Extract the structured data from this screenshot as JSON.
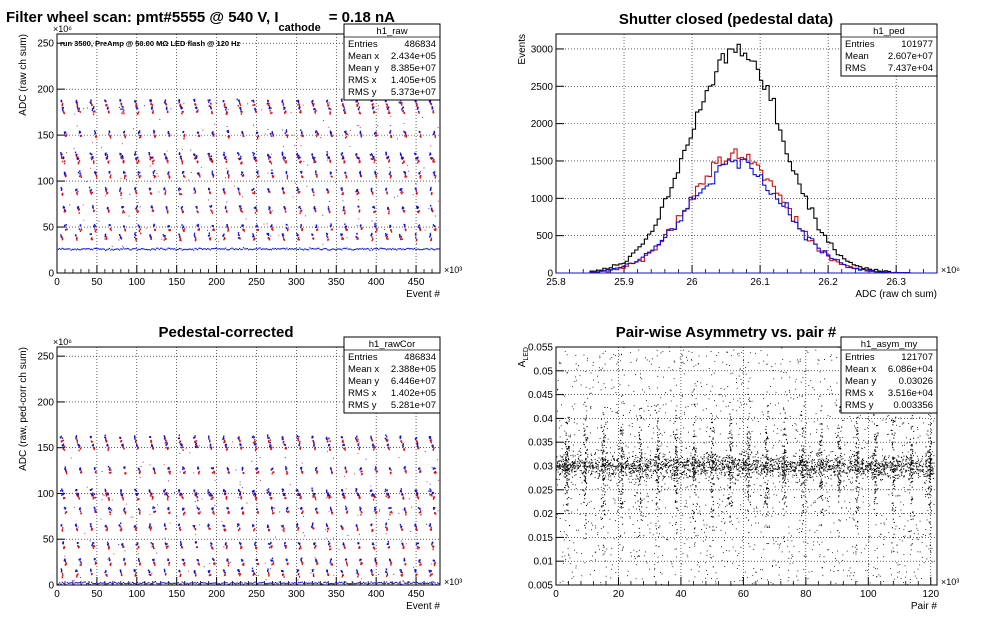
{
  "colors": {
    "red": "#d01010",
    "blue": "#1010d0",
    "black": "#000000"
  },
  "chart_data": [
    {
      "id": "raw",
      "type": "scatter",
      "title": "Filter wheel scan: pmt#5555 @   540 V, I",
      "title_sub": "cathode",
      "title_tail": "= 0.18 nA",
      "annotation": "run 3500, PreAmp @ 50.00 MΩ LED flash @  120 Hz",
      "xlabel": "Event #",
      "ylabel": "ADC (raw ch sum)",
      "x_exponent": "×10³",
      "y_exponent": "×10⁶",
      "xlim": [
        0,
        480
      ],
      "ylim": [
        0,
        260
      ],
      "xticks": [
        0,
        50,
        100,
        150,
        200,
        250,
        300,
        350,
        400,
        450
      ],
      "yticks": [
        0,
        50,
        100,
        150,
        200,
        250
      ],
      "grid": true,
      "baseline": 26,
      "levels": [
        186,
        178,
        152,
        128,
        124,
        108,
        90,
        70,
        50,
        40
      ],
      "stats": {
        "name": "h1_raw",
        "rows": [
          [
            "Entries",
            "486834"
          ],
          [
            "Mean x",
            "2.434e+05"
          ],
          [
            "Mean y",
            "8.385e+07"
          ],
          [
            "RMS x",
            "1.405e+05"
          ],
          [
            "RMS y",
            "5.373e+07"
          ]
        ]
      }
    },
    {
      "id": "ped",
      "type": "line",
      "title": "Shutter closed (pedestal data)",
      "xlabel": "ADC (raw ch sum)",
      "ylabel": "Events",
      "x_exponent": "×10⁶",
      "xlim": [
        25.8,
        26.36
      ],
      "ylim": [
        0,
        3200
      ],
      "xticks": [
        25.8,
        25.9,
        26,
        26.1,
        26.2,
        26.3
      ],
      "xtick_labels": [
        "25.8",
        "25.9",
        "26",
        "26.1",
        "26.2",
        "26.3"
      ],
      "yticks": [
        0,
        500,
        1000,
        1500,
        2000,
        2500,
        3000
      ],
      "grid": true,
      "series": [
        {
          "color": "black",
          "mean": 26.065,
          "sigma": 0.068,
          "peak": 3020
        },
        {
          "color": "red",
          "mean": 26.065,
          "sigma": 0.068,
          "peak": 1580
        },
        {
          "color": "blue",
          "mean": 26.065,
          "sigma": 0.07,
          "peak": 1470
        }
      ],
      "stats": {
        "name": "h1_ped",
        "rows": [
          [
            "Entries",
            "101977"
          ],
          [
            "Mean",
            "2.607e+07"
          ],
          [
            "RMS",
            "7.437e+04"
          ]
        ]
      }
    },
    {
      "id": "rawCor",
      "type": "scatter",
      "title": "Pedestal-corrected",
      "xlabel": "Event #",
      "ylabel": "ADC (raw, ped-corr ch sum)",
      "x_exponent": "×10³",
      "y_exponent": "×10⁶",
      "xlim": [
        0,
        480
      ],
      "ylim": [
        0,
        260
      ],
      "xticks": [
        0,
        50,
        100,
        150,
        200,
        250,
        300,
        350,
        400,
        450
      ],
      "yticks": [
        0,
        50,
        100,
        150,
        200,
        250
      ],
      "grid": true,
      "baseline": 2,
      "levels": [
        160,
        152,
        126,
        102,
        98,
        82,
        64,
        44,
        26,
        14
      ],
      "stats": {
        "name": "h1_rawCor",
        "rows": [
          [
            "Entries",
            "486834"
          ],
          [
            "Mean x",
            "2.388e+05"
          ],
          [
            "Mean y",
            "6.446e+07"
          ],
          [
            "RMS x",
            "1.402e+05"
          ],
          [
            "RMS y",
            "5.281e+07"
          ]
        ]
      }
    },
    {
      "id": "asym",
      "type": "scatter",
      "title": "Pair-wise Asymmetry vs. pair #",
      "xlabel": "Pair #",
      "ylabel": "A_LED",
      "ylabel_main": "A",
      "ylabel_sub": "LED",
      "x_exponent": "×10³",
      "xlim": [
        0,
        122
      ],
      "ylim": [
        0.005,
        0.055
      ],
      "xticks": [
        0,
        20,
        40,
        60,
        80,
        100,
        120
      ],
      "yticks": [
        0.005,
        0.01,
        0.015,
        0.02,
        0.025,
        0.03,
        0.035,
        0.04,
        0.045,
        0.05,
        0.055
      ],
      "ytick_labels": [
        "0.005",
        "0.01",
        "0.015",
        "0.02",
        "0.025",
        "0.03",
        "0.035",
        "0.04",
        "0.045",
        "0.05",
        "0.055"
      ],
      "grid": true,
      "band_center": 0.03,
      "stats": {
        "name": "h1_asym_my",
        "rows": [
          [
            "Entries",
            "121707"
          ],
          [
            "Mean x",
            "6.086e+04"
          ],
          [
            "Mean y",
            "0.03026"
          ],
          [
            "RMS x",
            "3.516e+04"
          ],
          [
            "RMS y",
            "0.003356"
          ]
        ]
      }
    }
  ]
}
